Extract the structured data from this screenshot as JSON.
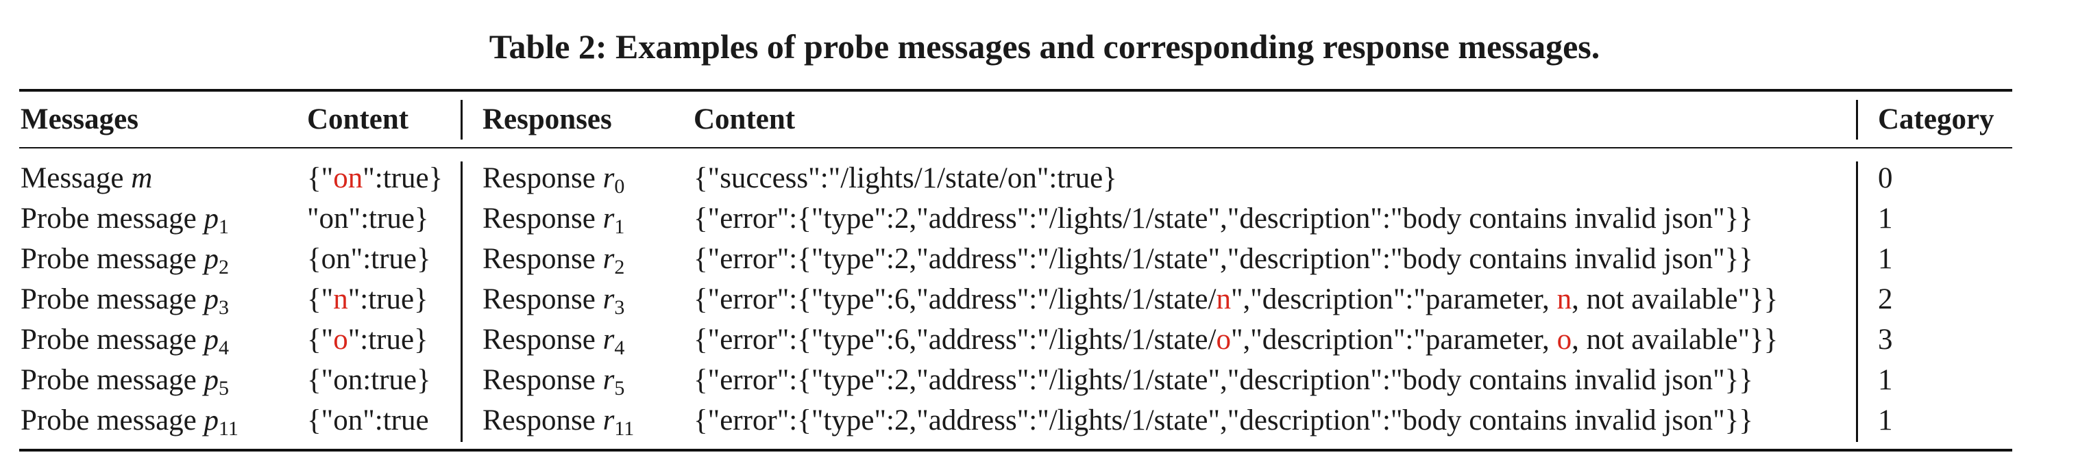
{
  "caption": "Table 2: Examples of probe messages and corresponding response messages.",
  "headers": {
    "messages": "Messages",
    "content": "Content",
    "responses": "Responses",
    "response_content": "Content",
    "category": "Category"
  },
  "rows": [
    {
      "msg_label": "Message ",
      "msg_var": "m",
      "msg_sub": "",
      "content": [
        "{\"",
        "on",
        "\":true}"
      ],
      "resp_label": "Response ",
      "resp_var": "r",
      "resp_sub": "0",
      "resp_content": [
        "{\"success\":\"/lights/1/state/on\":true}",
        "",
        ""
      ],
      "category": "0"
    },
    {
      "msg_label": "Probe message ",
      "msg_var": "p",
      "msg_sub": "1",
      "content": [
        "\"on\":true}",
        "",
        ""
      ],
      "resp_label": "Response ",
      "resp_var": "r",
      "resp_sub": "1",
      "resp_content": [
        "{\"error\":{\"type\":2,\"address\":\"/lights/1/state\",\"description\":\"body contains invalid json\"}}",
        "",
        ""
      ],
      "category": "1"
    },
    {
      "msg_label": "Probe message ",
      "msg_var": "p",
      "msg_sub": "2",
      "content": [
        "{on\":true}",
        "",
        ""
      ],
      "resp_label": "Response ",
      "resp_var": "r",
      "resp_sub": "2",
      "resp_content": [
        "{\"error\":{\"type\":2,\"address\":\"/lights/1/state\",\"description\":\"body contains invalid json\"}}",
        "",
        ""
      ],
      "category": "1"
    },
    {
      "msg_label": "Probe message ",
      "msg_var": "p",
      "msg_sub": "3",
      "content": [
        "{\"",
        "n",
        "\":true}"
      ],
      "resp_label": "Response ",
      "resp_var": "r",
      "resp_sub": "3",
      "resp_content": [
        "{\"error\":{\"type\":6,\"address\":\"/lights/1/state/",
        "n",
        "\",\"description\":\"parameter, ",
        "n",
        ", not available\"}}"
      ],
      "category": "2"
    },
    {
      "msg_label": "Probe message ",
      "msg_var": "p",
      "msg_sub": "4",
      "content": [
        "{\"",
        "o",
        "\":true}"
      ],
      "resp_label": "Response ",
      "resp_var": "r",
      "resp_sub": "4",
      "resp_content": [
        "{\"error\":{\"type\":6,\"address\":\"/lights/1/state/",
        "o",
        "\",\"description\":\"parameter, ",
        "o",
        ", not available\"}}"
      ],
      "category": "3"
    },
    {
      "msg_label": "Probe message ",
      "msg_var": "p",
      "msg_sub": "5",
      "content": [
        "{\"on:true}",
        "",
        ""
      ],
      "resp_label": "Response ",
      "resp_var": "r",
      "resp_sub": "5",
      "resp_content": [
        "{\"error\":{\"type\":2,\"address\":\"/lights/1/state\",\"description\":\"body contains invalid json\"}}",
        "",
        ""
      ],
      "category": "1"
    },
    {
      "msg_label": "Probe message ",
      "msg_var": "p",
      "msg_sub": "11",
      "content": [
        "{\"on\":true",
        "",
        ""
      ],
      "resp_label": "Response ",
      "resp_var": "r",
      "resp_sub": "11",
      "resp_content": [
        "{\"error\":{\"type\":2,\"address\":\"/lights/1/state\",\"description\":\"body contains invalid json\"}}",
        "",
        ""
      ],
      "category": "1"
    }
  ],
  "colors": {
    "highlight": "#d9271c",
    "text": "#1a1a1a",
    "rule": "#111111"
  }
}
